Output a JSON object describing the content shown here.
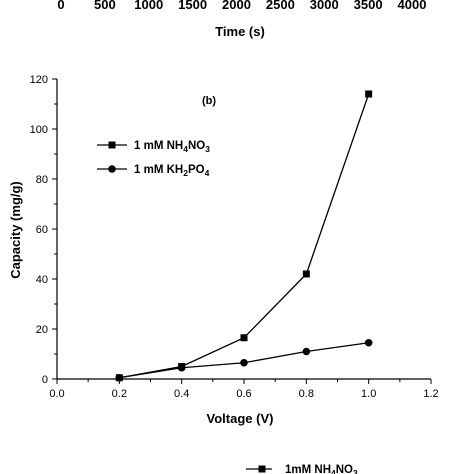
{
  "top_strip": {
    "ticks": [
      "0",
      "500",
      "1000",
      "1500",
      "2000",
      "2500",
      "3000",
      "3500",
      "4000"
    ],
    "xlabel": "Time (s)"
  },
  "chart_data": {
    "type": "line",
    "panel_label": "(b)",
    "xlabel": "Voltage (V)",
    "ylabel": "Capacity (mg/g)",
    "xlim": [
      0.0,
      1.2
    ],
    "ylim": [
      0,
      120
    ],
    "xticks": [
      0.0,
      0.2,
      0.4,
      0.6,
      0.8,
      1.0,
      1.2
    ],
    "yticks": [
      0,
      20,
      40,
      60,
      80,
      100,
      120
    ],
    "grid": false,
    "legend_position": "upper-left",
    "x": [
      0.2,
      0.4,
      0.6,
      0.8,
      1.0
    ],
    "series": [
      {
        "name": "1 mM NH4NO3",
        "label_parts": [
          [
            "1 mM NH",
            false
          ],
          [
            "4",
            true
          ],
          [
            "NO",
            false
          ],
          [
            "3",
            true
          ]
        ],
        "marker": "square",
        "color": "#000000",
        "values": [
          0.5,
          5.0,
          16.5,
          42.0,
          114.0
        ]
      },
      {
        "name": "1 mM KH2PO4",
        "label_parts": [
          [
            "1 mM KH",
            false
          ],
          [
            "2",
            true
          ],
          [
            "PO",
            false
          ],
          [
            "4",
            true
          ]
        ],
        "marker": "circle",
        "color": "#000000",
        "values": [
          0.5,
          4.5,
          6.5,
          11.0,
          14.5
        ]
      }
    ]
  },
  "bottom_legend_fragment": {
    "label": "1mM NH4NO3",
    "label_parts": [
      [
        "1mM NH",
        false
      ],
      [
        "4",
        true
      ],
      [
        "NO",
        false
      ],
      [
        "3",
        true
      ]
    ]
  }
}
